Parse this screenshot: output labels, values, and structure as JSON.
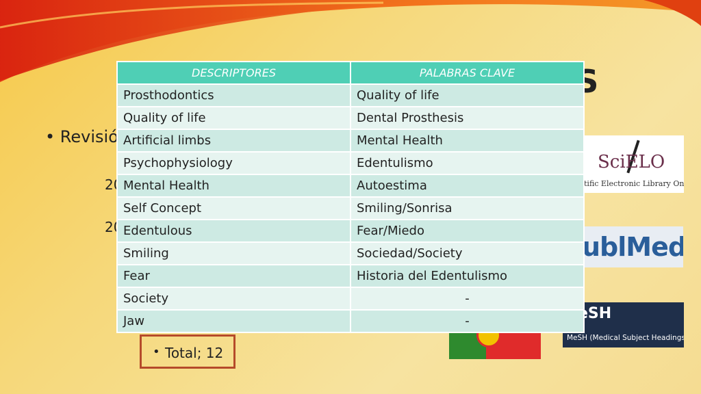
{
  "slide": {
    "title_fragment": "DOS",
    "bullet_fragment": "• Revisió",
    "partial_year_1": "20",
    "partial_year_2": "20"
  },
  "table": {
    "headers": [
      "DESCRIPTORES",
      "PALABRAS CLAVE"
    ],
    "rows": [
      [
        "Prosthodontics",
        "Quality of life"
      ],
      [
        "Quality of life",
        "Dental Prosthesis"
      ],
      [
        "Artificial limbs",
        "Mental Health"
      ],
      [
        "Psychophysiology",
        "Edentulismo"
      ],
      [
        "Mental Health",
        "Autoestima"
      ],
      [
        "Self Concept",
        "Smiling/Sonrisa"
      ],
      [
        "Edentulous",
        "Fear/Miedo"
      ],
      [
        "Smiling",
        "Sociedad/Society"
      ],
      [
        "Fear",
        "Historia del Edentulismo"
      ],
      [
        "Society",
        "-"
      ],
      [
        "Jaw",
        "-"
      ]
    ],
    "header_color": "#4fcfb5"
  },
  "logos": {
    "scielo_mark": "SciELO",
    "scielo_sub": "tific Electronic Library Online",
    "pubmed_text": "ublMed",
    "mesh_big": "eSH",
    "mesh_small": "MeSH (Medical Subject Headings)"
  },
  "total": {
    "bullet": "•",
    "label": "Total; 12"
  },
  "colors": {
    "accent_orange": "#e8501c",
    "box_border": "#b54a2a"
  }
}
